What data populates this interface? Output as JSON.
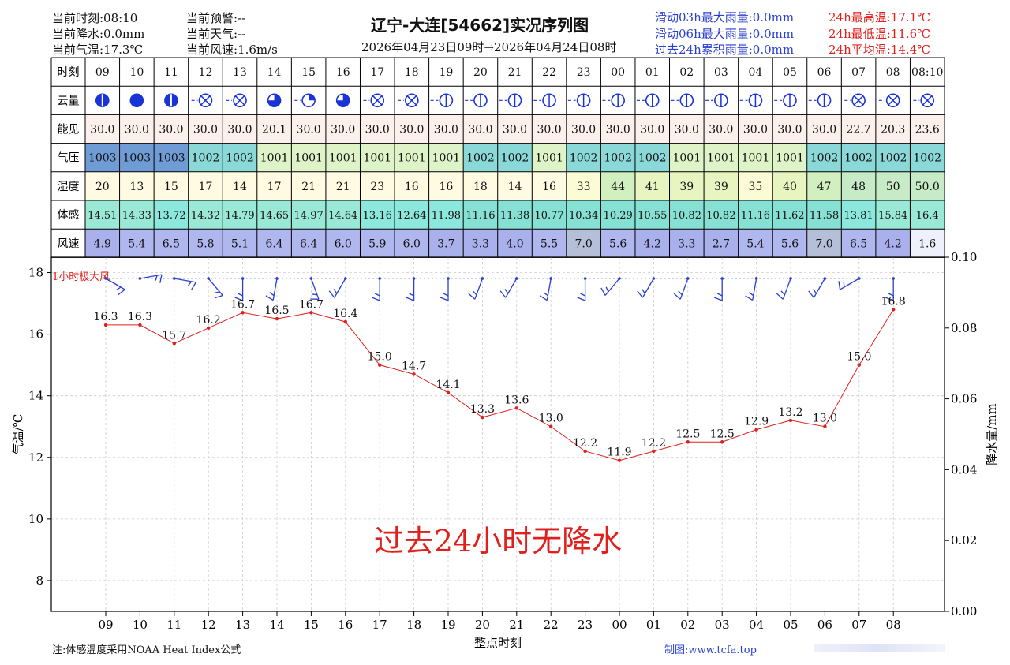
{
  "header": {
    "left": [
      [
        "当前时刻:08:10",
        "当前预警:--"
      ],
      [
        "当前降水:0.0mm",
        "当前天气:--"
      ],
      [
        "当前气温:17.3℃",
        "当前风速:1.6m/s"
      ]
    ],
    "title": "辽宁-大连[54662]实况序列图",
    "subtitle": "2026年04月23日09时→2026年04月24日08时",
    "rain_stats": [
      "滑动03h最大雨量:0.0mm",
      "滑动06h最大雨量:0.0mm",
      "过去24h累积雨量:0.0mm"
    ],
    "temp_stats": [
      "24h最高温:17.1℃",
      "24h最低温:11.6℃",
      "24h平均温:14.4℃"
    ],
    "colors": {
      "red": "#e0201c",
      "blue": "#2a3fd0"
    }
  },
  "table": {
    "hours": [
      "09",
      "10",
      "11",
      "12",
      "13",
      "14",
      "15",
      "16",
      "17",
      "18",
      "19",
      "20",
      "21",
      "22",
      "23",
      "00",
      "01",
      "02",
      "03",
      "04",
      "05",
      "06",
      "07",
      "08",
      "08:10"
    ],
    "rows": [
      {
        "label": "时刻",
        "key": "hour"
      },
      {
        "label": "云量",
        "key": "cloud"
      },
      {
        "label": "能见",
        "key": "vis"
      },
      {
        "label": "气压",
        "key": "pres"
      },
      {
        "label": "湿度",
        "key": "rh"
      },
      {
        "label": "体感",
        "key": "feel"
      },
      {
        "label": "风速",
        "key": "wind"
      }
    ],
    "cloud": [
      "full-line",
      "full",
      "full-line",
      "x",
      "x",
      "three-quarter",
      "quarter",
      "three-quarter",
      "x",
      "x",
      "line",
      "line",
      "line",
      "line",
      "line",
      "line",
      "line",
      "line",
      "line",
      "line",
      "line",
      "line",
      "x",
      "x",
      "x"
    ],
    "vis": [
      "30.0",
      "30.0",
      "30.0",
      "30.0",
      "30.0",
      "20.1",
      "30.0",
      "30.0",
      "30.0",
      "30.0",
      "30.0",
      "30.0",
      "30.0",
      "30.0",
      "30.0",
      "30.0",
      "30.0",
      "30.0",
      "30.0",
      "30.0",
      "30.0",
      "30.0",
      "22.7",
      "20.3",
      "23.6"
    ],
    "pres": [
      "1003",
      "1003",
      "1003",
      "1002",
      "1002",
      "1001",
      "1001",
      "1001",
      "1001",
      "1001",
      "1001",
      "1002",
      "1002",
      "1001",
      "1002",
      "1002",
      "1002",
      "1001",
      "1001",
      "1001",
      "1001",
      "1002",
      "1002",
      "1002",
      "1002"
    ],
    "rh": [
      "20",
      "13",
      "15",
      "17",
      "14",
      "17",
      "21",
      "21",
      "23",
      "16",
      "16",
      "18",
      "14",
      "16",
      "33",
      "44",
      "41",
      "39",
      "39",
      "35",
      "40",
      "47",
      "48",
      "50",
      "50.0"
    ],
    "feel": [
      "14.51",
      "14.33",
      "13.72",
      "14.32",
      "14.79",
      "14.65",
      "14.97",
      "14.64",
      "13.16",
      "12.64",
      "11.98",
      "11.16",
      "11.38",
      "10.77",
      "10.34",
      "10.29",
      "10.55",
      "10.82",
      "10.82",
      "11.16",
      "11.62",
      "11.58",
      "13.81",
      "15.84",
      "16.4"
    ],
    "wind": [
      "4.9",
      "5.4",
      "6.5",
      "5.8",
      "5.1",
      "6.4",
      "6.4",
      "6.0",
      "5.9",
      "6.0",
      "3.7",
      "3.3",
      "4.0",
      "5.5",
      "7.0",
      "5.6",
      "4.2",
      "3.3",
      "2.7",
      "5.4",
      "5.6",
      "7.0",
      "6.5",
      "4.2",
      "1.6"
    ],
    "pres_colors": {
      "1001": "#dff3c9",
      "1002": "#8ad8d8",
      "1003": "#6f9cd4"
    },
    "rh_colors": [
      "#fffbe3",
      "#fbfbd6",
      "#e8f5c0",
      "#d2efc0",
      "#c6ebc6"
    ],
    "feel_colors": [
      "#86e0d4",
      "#8ce8dc",
      "#9ae9d6"
    ],
    "wind_colors": [
      "#b0b6ee",
      "#a9b0ec",
      "#b5c0d8",
      "#eef0fb"
    ],
    "vis_color": "#fcf0ec"
  },
  "chart_data": {
    "type": "line",
    "x": [
      "09",
      "10",
      "11",
      "12",
      "13",
      "14",
      "15",
      "16",
      "17",
      "18",
      "19",
      "20",
      "21",
      "22",
      "23",
      "00",
      "01",
      "02",
      "03",
      "04",
      "05",
      "06",
      "07",
      "08"
    ],
    "temperature": [
      16.3,
      16.3,
      15.7,
      16.2,
      16.7,
      16.5,
      16.7,
      16.4,
      15.0,
      14.7,
      14.1,
      13.3,
      13.6,
      13.0,
      12.2,
      11.9,
      12.2,
      12.5,
      12.5,
      12.9,
      13.2,
      13.0,
      15.0,
      16.8
    ],
    "wind_direction_deg": [
      300,
      260,
      280,
      320,
      0,
      10,
      340,
      30,
      0,
      0,
      0,
      20,
      30,
      10,
      0,
      40,
      30,
      20,
      0,
      10,
      20,
      30,
      60,
      0
    ],
    "ylim": [
      7,
      18.5
    ],
    "yticks": [
      8,
      10,
      12,
      14,
      16,
      18
    ],
    "y2lim": [
      0,
      0.1
    ],
    "y2ticks": [
      "0.00",
      "0.02",
      "0.04",
      "0.06",
      "0.08",
      "0.10"
    ],
    "ylabel": "气温/℃",
    "y2label": "降水量/mm",
    "xlabel": "整点时刻",
    "gust_label": "1小时极大风",
    "no_rain_text": "过去24小时无降水",
    "line_color": "#e0201c",
    "barb_color": "#2a3fd0",
    "grid": true
  },
  "footer": {
    "note": "注:体感温度采用NOAA Heat Index公式",
    "credit": "制图:www.tcfa.top"
  }
}
